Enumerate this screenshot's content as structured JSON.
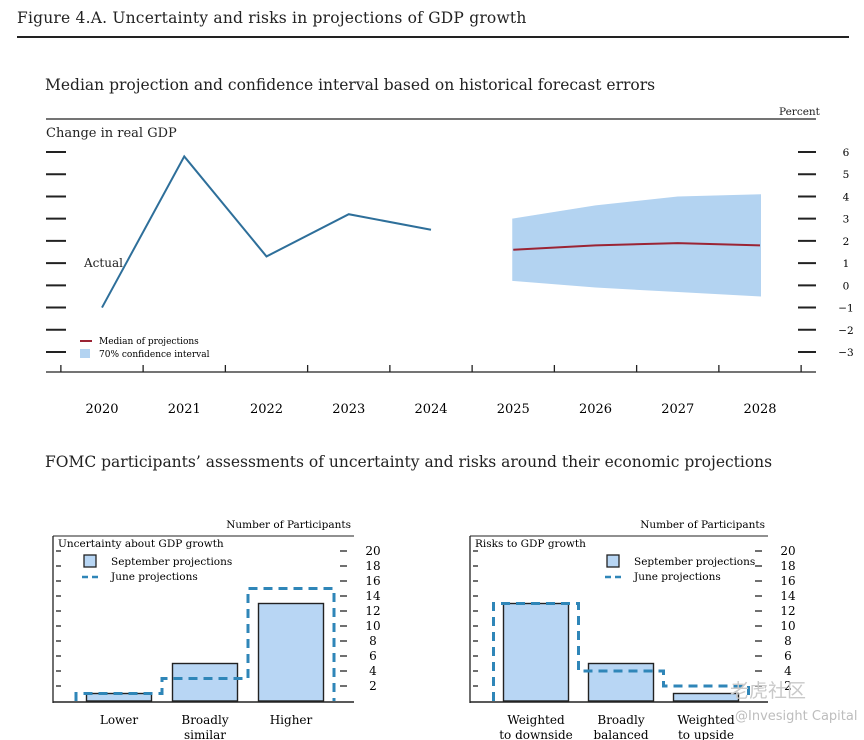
{
  "figure": {
    "title": "Figure 4.A. Uncertainty and risks in projections of GDP growth"
  },
  "top_panel": {
    "title": "Median projection and confidence interval based on historical forecast errors",
    "unit_label": "Percent",
    "y_label": "Change in real GDP",
    "actual_label": "Actual",
    "legend": {
      "median": "Median of projections",
      "ci": "70% confidence interval"
    }
  },
  "bottom_title": "FOMC participants’ assessments of uncertainty and risks around their economic projections",
  "left_panel": {
    "header": "Number of Participants",
    "title": "Uncertainty about GDP growth",
    "legend_sep": "September projections",
    "legend_jun": "June projections",
    "categories": [
      "Lower",
      "Broadly similar",
      "Higher"
    ]
  },
  "right_panel": {
    "header": "Number of Participants",
    "title": "Risks to GDP growth",
    "legend_sep": "September projections",
    "legend_jun": "June projections",
    "categories": [
      "Weighted to downside",
      "Broadly balanced",
      "Weighted to upside"
    ]
  },
  "colors": {
    "actual_line": "#2e6f9a",
    "median_line": "#9b2434",
    "ci_fill": "#b3d3f1",
    "bar_fill": "#b8d6f4",
    "june_dash": "#2f86b8",
    "ink": "#222222"
  },
  "watermark": {
    "cn": "老虎社区",
    "en": "@Invesight Capital"
  },
  "chart_data": [
    {
      "type": "line",
      "x": [
        2020,
        2021,
        2022,
        2023,
        2024,
        2025,
        2026,
        2027,
        2028
      ],
      "xlim": [
        2020,
        2028
      ],
      "ylim": [
        -3,
        6
      ],
      "y_ticks": [
        6,
        5,
        4,
        3,
        2,
        1,
        0,
        -1,
        -2,
        -3
      ],
      "series": [
        {
          "name": "Actual",
          "x": [
            2020,
            2021,
            2022,
            2023,
            2024
          ],
          "values": [
            -1.0,
            5.8,
            1.3,
            3.2,
            2.5
          ]
        },
        {
          "name": "Median of projections",
          "x": [
            2025,
            2026,
            2027,
            2028
          ],
          "values": [
            1.6,
            1.8,
            1.9,
            1.8
          ]
        }
      ],
      "band": {
        "name": "70% confidence interval",
        "x": [
          2025,
          2026,
          2027,
          2028
        ],
        "lower": [
          0.2,
          -0.1,
          -0.3,
          -0.5
        ],
        "upper": [
          3.0,
          3.6,
          4.0,
          4.1
        ]
      },
      "ylabel": "Change in real GDP",
      "unit": "Percent"
    },
    {
      "type": "bar",
      "title": "Uncertainty about GDP growth",
      "categories": [
        "Lower",
        "Broadly similar",
        "Higher"
      ],
      "series": [
        {
          "name": "September projections",
          "values": [
            1,
            5,
            13
          ]
        },
        {
          "name": "June projections",
          "values": [
            1,
            3,
            15
          ]
        }
      ],
      "ylim": [
        0,
        20
      ],
      "y_ticks": [
        2,
        4,
        6,
        8,
        10,
        12,
        14,
        16,
        18,
        20
      ],
      "ylabel": "Number of Participants"
    },
    {
      "type": "bar",
      "title": "Risks to GDP growth",
      "categories": [
        "Weighted to downside",
        "Broadly balanced",
        "Weighted to upside"
      ],
      "series": [
        {
          "name": "September projections",
          "values": [
            13,
            5,
            1
          ]
        },
        {
          "name": "June projections",
          "values": [
            13,
            4,
            2
          ]
        }
      ],
      "ylim": [
        0,
        20
      ],
      "y_ticks": [
        2,
        4,
        6,
        8,
        10,
        12,
        14,
        16,
        18,
        20
      ],
      "ylabel": "Number of Participants"
    }
  ]
}
